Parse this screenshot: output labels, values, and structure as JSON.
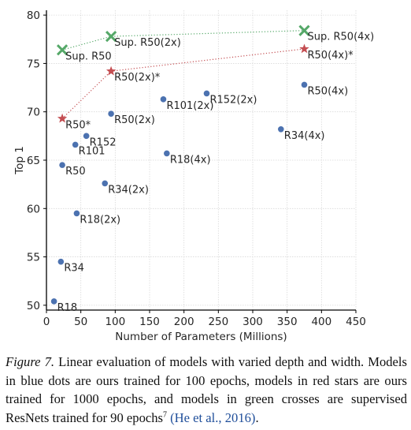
{
  "chart_data": {
    "type": "scatter",
    "xlabel": "Number of Parameters (Millions)",
    "ylabel": "Top 1",
    "xlim": [
      0,
      450
    ],
    "ylim": [
      49.5,
      80.5
    ],
    "x_ticks": [
      0,
      50,
      100,
      150,
      200,
      250,
      300,
      350,
      400,
      450
    ],
    "y_ticks": [
      50,
      55,
      60,
      65,
      70,
      75,
      80
    ],
    "grid": true,
    "colors": {
      "blue": "#4c72b0",
      "red": "#c44e52",
      "green": "#55a868"
    },
    "series": [
      {
        "color": "blue",
        "marker": "dot",
        "points": [
          {
            "label": "R18",
            "x": 11,
            "y": 50.4
          },
          {
            "label": "R34",
            "x": 21,
            "y": 54.5
          },
          {
            "label": "R50",
            "x": 23,
            "y": 64.5
          },
          {
            "label": "R101",
            "x": 42,
            "y": 66.6
          },
          {
            "label": "R152",
            "x": 58,
            "y": 67.5
          },
          {
            "label": "R18(2x)",
            "x": 44,
            "y": 59.5
          },
          {
            "label": "R34(2x)",
            "x": 85,
            "y": 62.6
          },
          {
            "label": "R50(2x)",
            "x": 94,
            "y": 69.8
          },
          {
            "label": "R101(2x)",
            "x": 170,
            "y": 71.3
          },
          {
            "label": "R152(2x)",
            "x": 233,
            "y": 71.9
          },
          {
            "label": "R18(4x)",
            "x": 175,
            "y": 65.7
          },
          {
            "label": "R34(4x)",
            "x": 341,
            "y": 68.2
          },
          {
            "label": "R50(4x)",
            "x": 375,
            "y": 72.8
          }
        ]
      },
      {
        "color": "red",
        "marker": "star",
        "line": "dotted",
        "points": [
          {
            "label": "R50*",
            "x": 23,
            "y": 69.3
          },
          {
            "label": "R50(2x)*",
            "x": 94,
            "y": 74.2
          },
          {
            "label": "R50(4x)*",
            "x": 375,
            "y": 76.5
          }
        ]
      },
      {
        "color": "green",
        "marker": "cross",
        "line": "dotted",
        "points": [
          {
            "label": "Sup. R50",
            "x": 23,
            "y": 76.4
          },
          {
            "label": "Sup. R50(2x)",
            "x": 94,
            "y": 77.8
          },
          {
            "label": "Sup. R50(4x)",
            "x": 375,
            "y": 78.4
          }
        ]
      }
    ]
  },
  "caption": {
    "figure_label": "Figure 7.",
    "text": "Linear evaluation of models with varied depth and width. Models in blue dots are ours trained for 100 epochs, models in red stars are ours trained for 1000 epochs, and models in green crosses are supervised ResNets trained for 90 epochs",
    "footnote_mark": "7",
    "citation": "(He et al., 2016)",
    "end": "."
  }
}
